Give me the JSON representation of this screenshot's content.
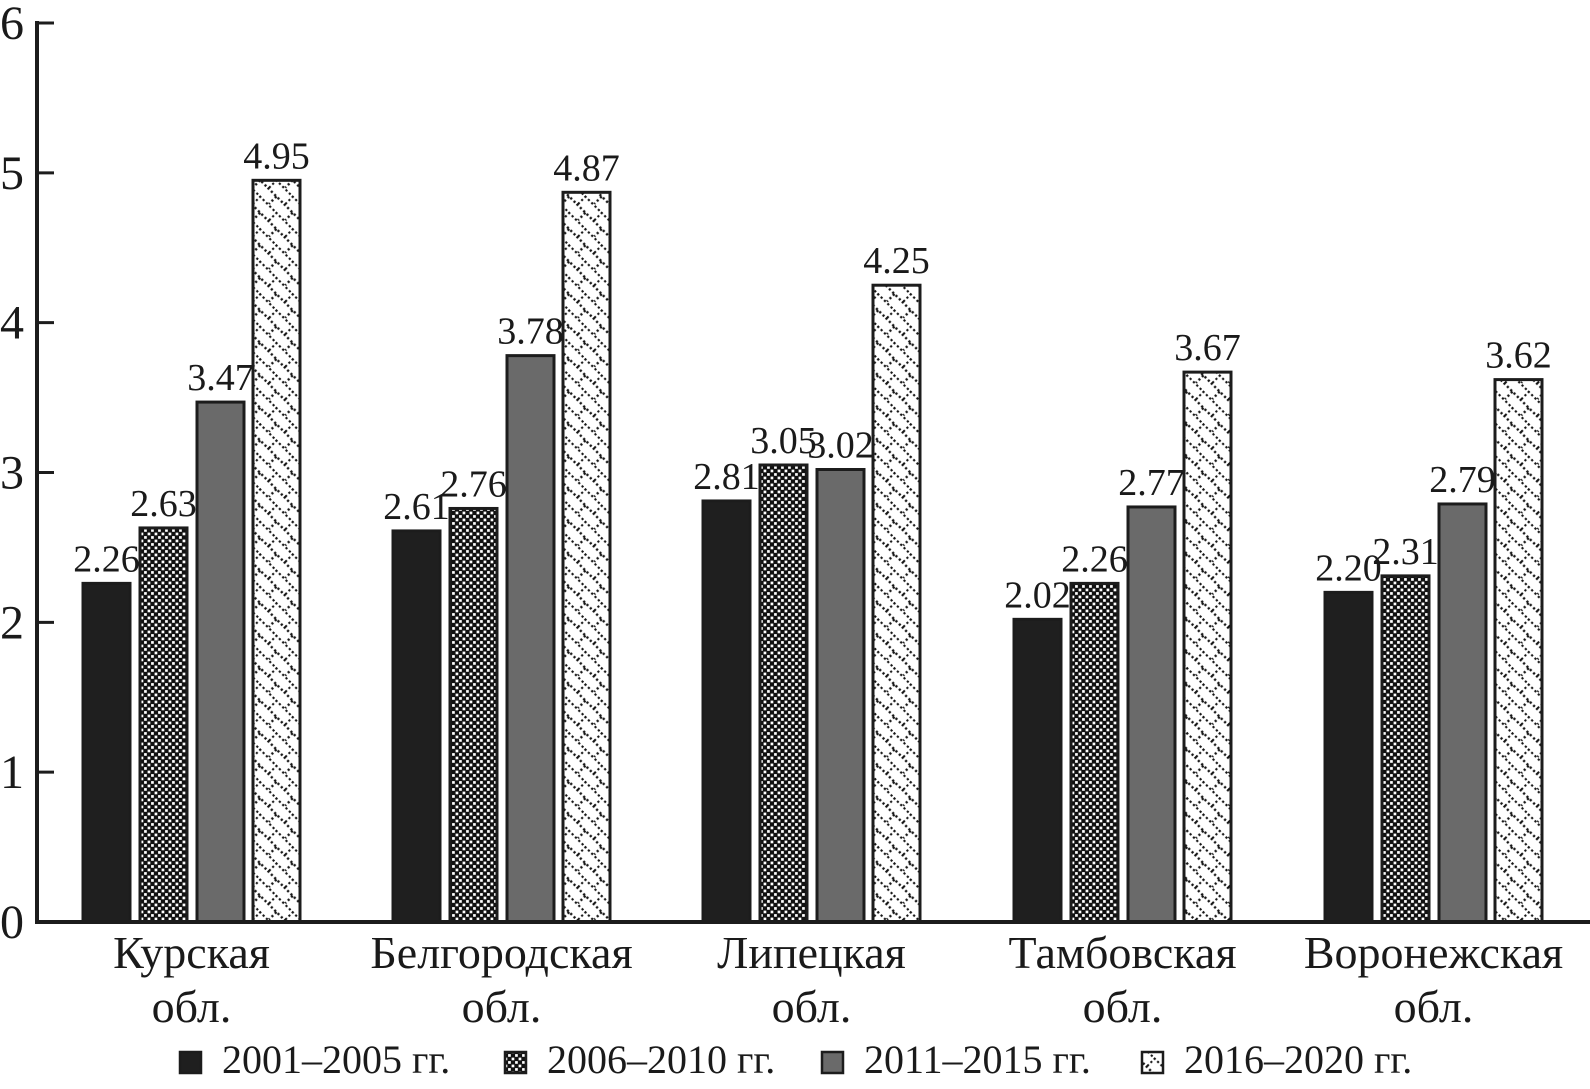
{
  "chart_data": {
    "type": "bar",
    "title": "",
    "xlabel": "",
    "ylabel": "",
    "ylim": [
      0,
      6
    ],
    "y_ticks": [
      "0",
      "1",
      "2",
      "3",
      "4",
      "5",
      "6"
    ],
    "grid": false,
    "legend_position": "bottom",
    "categories": [
      {
        "line1": "Курская",
        "line2": "обл."
      },
      {
        "line1": "Белгородская",
        "line2": "обл."
      },
      {
        "line1": "Липецкая",
        "line2": "обл."
      },
      {
        "line1": "Тамбовская",
        "line2": "обл."
      },
      {
        "line1": "Воронежская",
        "line2": "обл."
      }
    ],
    "series": [
      {
        "name": "2001–2005 гг.",
        "pattern": "solid-black",
        "values": [
          2.26,
          2.61,
          2.81,
          2.02,
          2.2
        ]
      },
      {
        "name": "2006–2010 гг.",
        "pattern": "white-dots-on-black",
        "values": [
          2.63,
          2.76,
          3.05,
          2.26,
          2.31
        ]
      },
      {
        "name": "2011–2015 гг.",
        "pattern": "solid-gray",
        "values": [
          3.47,
          3.78,
          3.02,
          2.77,
          2.79
        ]
      },
      {
        "name": "2016–2020 гг.",
        "pattern": "diagonal-hatch",
        "values": [
          4.95,
          4.87,
          4.25,
          3.67,
          3.62
        ]
      }
    ],
    "value_label_decimals": 2,
    "colors": {
      "bar_black": "#1f1f1f",
      "bar_gray": "#6a6a6a",
      "pattern_ink": "#161616",
      "pattern_bg": "#ffffff",
      "axis": "#1c1c1c",
      "text": "#1a1a1a"
    }
  }
}
